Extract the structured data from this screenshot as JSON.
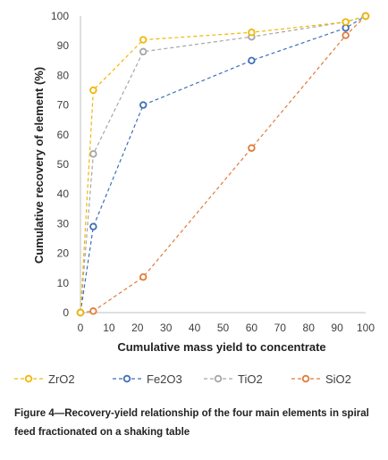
{
  "chart_data": {
    "type": "line",
    "xlabel": "Cumulative mass yield to concentrate",
    "ylabel": "Cumulative recovery of element (%)",
    "xlim": [
      0,
      100
    ],
    "ylim": [
      0,
      100
    ],
    "xticks": [
      0,
      10,
      20,
      30,
      40,
      50,
      60,
      70,
      80,
      90,
      100
    ],
    "yticks": [
      0,
      10,
      20,
      30,
      40,
      50,
      60,
      70,
      80,
      90,
      100
    ],
    "grid": false,
    "legend_position": "bottom",
    "series": [
      {
        "name": "ZrO2",
        "color": "#F2B705",
        "x": [
          0,
          4.5,
          22,
          60,
          93,
          100
        ],
        "y": [
          0,
          75,
          92,
          94.5,
          98,
          100
        ]
      },
      {
        "name": "Fe2O3",
        "color": "#3F6FB6",
        "x": [
          0,
          4.5,
          22,
          60,
          93,
          100
        ],
        "y": [
          0,
          29,
          70,
          85,
          96,
          100
        ]
      },
      {
        "name": "TiO2",
        "color": "#A6A6A6",
        "x": [
          0,
          4.5,
          22,
          60,
          93,
          100
        ],
        "y": [
          0,
          53.5,
          88,
          93,
          98,
          100
        ]
      },
      {
        "name": "SiO2",
        "color": "#E07B39",
        "x": [
          0,
          4.5,
          22,
          60,
          93,
          100
        ],
        "y": [
          0,
          0.5,
          12,
          55.5,
          93.5,
          100
        ]
      }
    ]
  },
  "caption": "Figure 4—Recovery-yield relationship of the four main elements in spiral feed fractionated on a shaking table"
}
